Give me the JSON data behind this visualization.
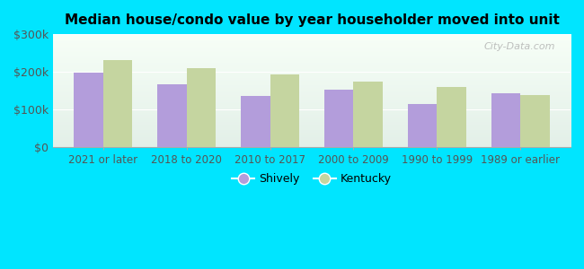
{
  "title": "Median house/condo value by year householder moved into unit",
  "categories": [
    "2021 or later",
    "2018 to 2020",
    "2010 to 2017",
    "2000 to 2009",
    "1990 to 1999",
    "1989 or earlier"
  ],
  "shively_values": [
    199000,
    168000,
    135000,
    152000,
    115000,
    143000
  ],
  "kentucky_values": [
    232000,
    210000,
    193000,
    175000,
    161000,
    138000
  ],
  "shively_color": "#b39ddb",
  "kentucky_color": "#c5d5a0",
  "ylim": [
    0,
    300000
  ],
  "yticks": [
    0,
    100000,
    200000,
    300000
  ],
  "ytick_labels": [
    "$0",
    "$100k",
    "$200k",
    "$300k"
  ],
  "outer_bg_color": "#00e5ff",
  "legend_shively": "Shively",
  "legend_kentucky": "Kentucky",
  "bar_width": 0.35,
  "watermark": "City-Data.com"
}
